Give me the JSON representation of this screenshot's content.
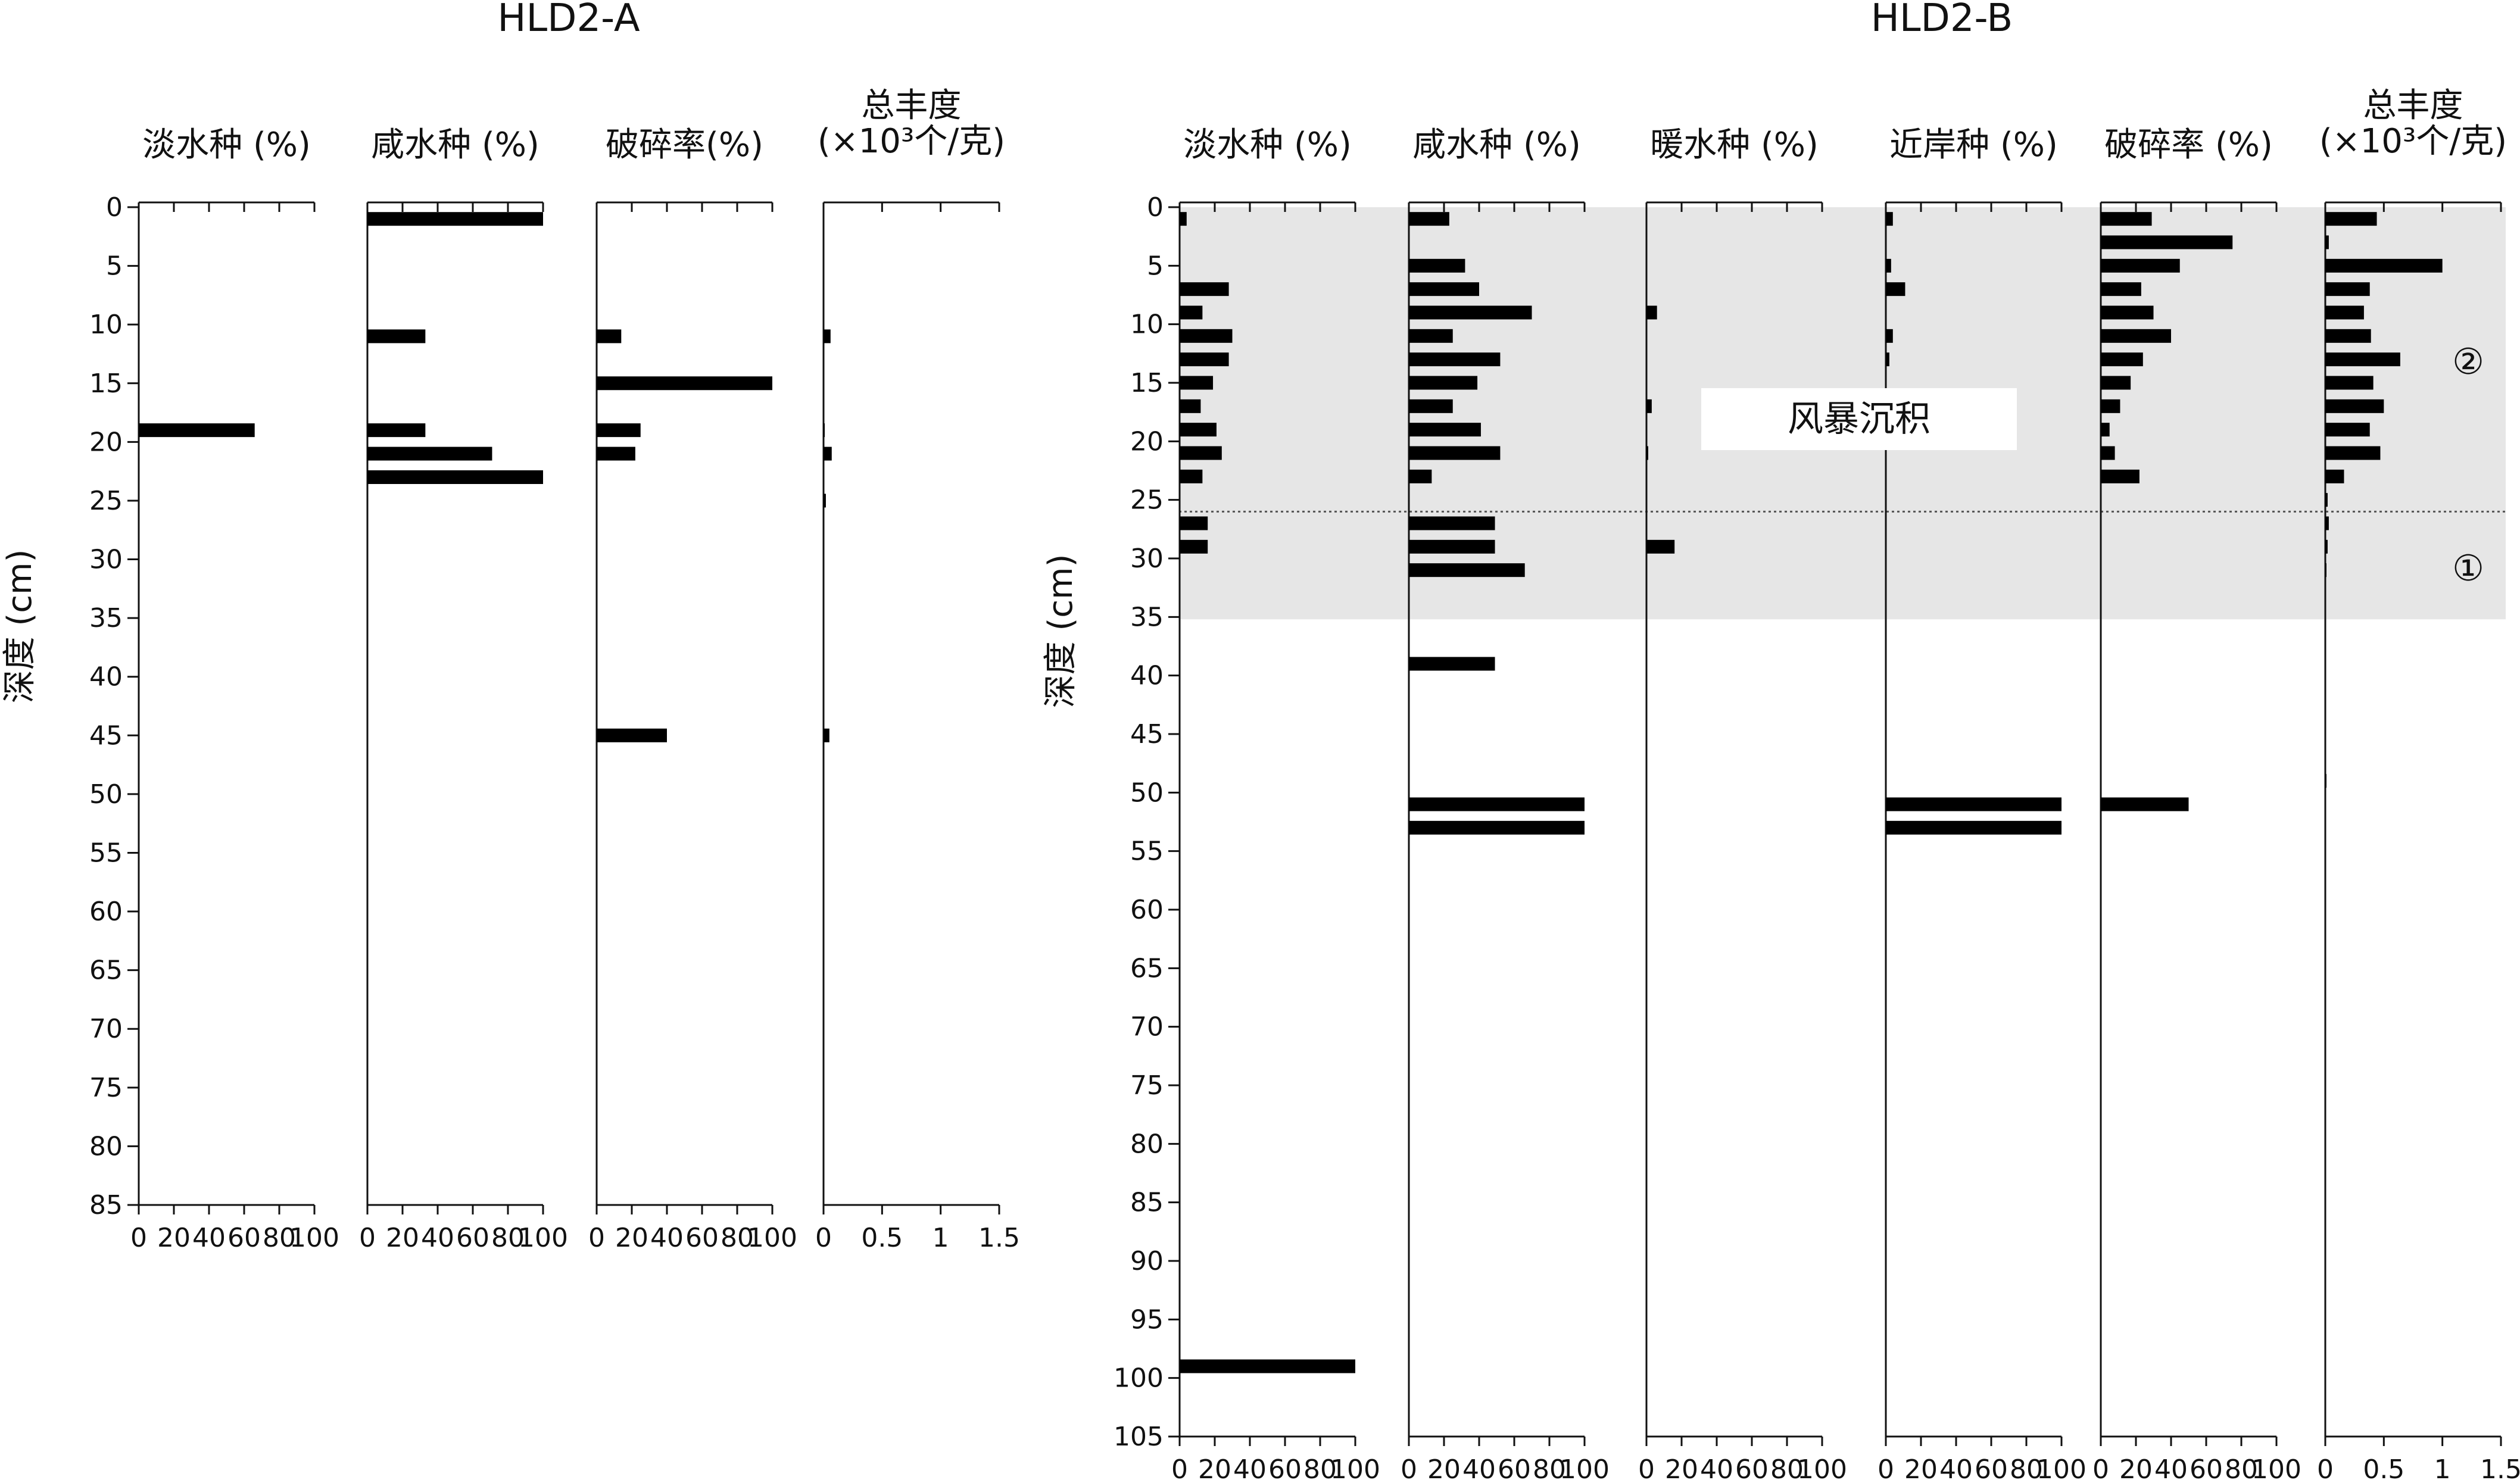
{
  "chart_data": [
    {
      "type": "bar",
      "orientation": "horizontal",
      "title": "HLD2-A",
      "ylabel": "深度 (cm)",
      "depth_ticks": [
        0,
        5,
        10,
        15,
        20,
        25,
        30,
        35,
        40,
        45,
        50,
        55,
        60,
        65,
        70,
        75,
        80,
        85
      ],
      "ylim": [
        0,
        85
      ],
      "columns": [
        {
          "title": "淡水种 (%)",
          "xlim": [
            0,
            100
          ],
          "tick_labels": [
            "0",
            "20",
            "40",
            "60",
            "80",
            "100"
          ],
          "bars": [
            {
              "depth": 19,
              "value": 66
            }
          ]
        },
        {
          "title": "咸水种 (%)",
          "xlim": [
            0,
            100
          ],
          "tick_labels": [
            "0",
            "20",
            "40",
            "60",
            "80",
            "100"
          ],
          "bars": [
            {
              "depth": 1,
              "value": 100
            },
            {
              "depth": 11,
              "value": 33
            },
            {
              "depth": 19,
              "value": 33
            },
            {
              "depth": 21,
              "value": 71
            },
            {
              "depth": 23,
              "value": 100
            }
          ]
        },
        {
          "title": "破碎率(%)",
          "xlim": [
            0,
            100
          ],
          "tick_labels": [
            "0",
            "20",
            "40",
            "60",
            "80",
            "100"
          ],
          "bars": [
            {
              "depth": 11,
              "value": 14
            },
            {
              "depth": 15,
              "value": 100
            },
            {
              "depth": 19,
              "value": 25
            },
            {
              "depth": 21,
              "value": 22
            },
            {
              "depth": 45,
              "value": 40
            }
          ]
        },
        {
          "title": "总丰度",
          "subtitle": "(×10³个/克)",
          "xlim": [
            0,
            1.5
          ],
          "tick_labels": [
            "0",
            "0.5",
            "1",
            "1.5"
          ],
          "bars": [
            {
              "depth": 11,
              "value": 0.06
            },
            {
              "depth": 19,
              "value": 0.01
            },
            {
              "depth": 21,
              "value": 0.07
            },
            {
              "depth": 25,
              "value": 0.02
            },
            {
              "depth": 45,
              "value": 0.05
            }
          ]
        }
      ]
    },
    {
      "type": "bar",
      "orientation": "horizontal",
      "title": "HLD2-B",
      "ylabel": "深度 (cm)",
      "depth_ticks": [
        0,
        5,
        10,
        15,
        20,
        25,
        30,
        35,
        40,
        45,
        50,
        55,
        60,
        65,
        70,
        75,
        80,
        85,
        90,
        95,
        100,
        105
      ],
      "ylim": [
        0,
        105
      ],
      "shaded_interval": [
        0,
        35.2
      ],
      "divider_depth": 26,
      "annotations": [
        {
          "text": "风暴沉积"
        },
        {
          "text": "②"
        },
        {
          "text": "①"
        }
      ],
      "columns": [
        {
          "title": "淡水种 (%)",
          "xlim": [
            0,
            100
          ],
          "tick_labels": [
            "0",
            "20",
            "40",
            "60",
            "80",
            "100"
          ],
          "bars": [
            {
              "depth": 1,
              "value": 4
            },
            {
              "depth": 7,
              "value": 28
            },
            {
              "depth": 9,
              "value": 13
            },
            {
              "depth": 11,
              "value": 30
            },
            {
              "depth": 13,
              "value": 28
            },
            {
              "depth": 15,
              "value": 19
            },
            {
              "depth": 17,
              "value": 12
            },
            {
              "depth": 19,
              "value": 21
            },
            {
              "depth": 21,
              "value": 24
            },
            {
              "depth": 23,
              "value": 13
            },
            {
              "depth": 27,
              "value": 16
            },
            {
              "depth": 29,
              "value": 16
            },
            {
              "depth": 99,
              "value": 100
            }
          ]
        },
        {
          "title": "咸水种 (%)",
          "xlim": [
            0,
            100
          ],
          "tick_labels": [
            "0",
            "20",
            "40",
            "60",
            "80",
            "100"
          ],
          "bars": [
            {
              "depth": 1,
              "value": 23
            },
            {
              "depth": 5,
              "value": 32
            },
            {
              "depth": 7,
              "value": 40
            },
            {
              "depth": 9,
              "value": 70
            },
            {
              "depth": 11,
              "value": 25
            },
            {
              "depth": 13,
              "value": 52
            },
            {
              "depth": 15,
              "value": 39
            },
            {
              "depth": 17,
              "value": 25
            },
            {
              "depth": 19,
              "value": 41
            },
            {
              "depth": 21,
              "value": 52
            },
            {
              "depth": 23,
              "value": 13
            },
            {
              "depth": 27,
              "value": 49
            },
            {
              "depth": 29,
              "value": 49
            },
            {
              "depth": 31,
              "value": 66
            },
            {
              "depth": 39,
              "value": 49
            },
            {
              "depth": 51,
              "value": 100
            },
            {
              "depth": 53,
              "value": 100
            }
          ]
        },
        {
          "title": "暖水种 (%)",
          "xlim": [
            0,
            100
          ],
          "tick_labels": [
            "0",
            "20",
            "40",
            "60",
            "80",
            "100"
          ],
          "bars": [
            {
              "depth": 9,
              "value": 6
            },
            {
              "depth": 17,
              "value": 3
            },
            {
              "depth": 21,
              "value": 1
            },
            {
              "depth": 29,
              "value": 16
            }
          ]
        },
        {
          "title": "近岸种 (%)",
          "xlim": [
            0,
            100
          ],
          "tick_labels": [
            "0",
            "20",
            "40",
            "60",
            "80",
            "100"
          ],
          "bars": [
            {
              "depth": 1,
              "value": 4
            },
            {
              "depth": 5,
              "value": 3
            },
            {
              "depth": 7,
              "value": 11
            },
            {
              "depth": 11,
              "value": 4
            },
            {
              "depth": 13,
              "value": 2
            },
            {
              "depth": 51,
              "value": 100
            },
            {
              "depth": 53,
              "value": 100
            }
          ]
        },
        {
          "title": "破碎率 (%)",
          "xlim": [
            0,
            100
          ],
          "tick_labels": [
            "0",
            "20",
            "40",
            "60",
            "80",
            "100"
          ],
          "bars": [
            {
              "depth": 1,
              "value": 29
            },
            {
              "depth": 3,
              "value": 75
            },
            {
              "depth": 5,
              "value": 45
            },
            {
              "depth": 7,
              "value": 23
            },
            {
              "depth": 9,
              "value": 30
            },
            {
              "depth": 11,
              "value": 40
            },
            {
              "depth": 13,
              "value": 24
            },
            {
              "depth": 15,
              "value": 17
            },
            {
              "depth": 17,
              "value": 11
            },
            {
              "depth": 19,
              "value": 5
            },
            {
              "depth": 21,
              "value": 8
            },
            {
              "depth": 23,
              "value": 22
            },
            {
              "depth": 51,
              "value": 50
            }
          ]
        },
        {
          "title": "总丰度",
          "subtitle": "(×10³个/克)",
          "xlim": [
            0,
            1.5
          ],
          "tick_labels": [
            "0",
            "0.5",
            "1",
            "1.5"
          ],
          "bars": [
            {
              "depth": 1,
              "value": 0.44
            },
            {
              "depth": 3,
              "value": 0.03
            },
            {
              "depth": 5,
              "value": 1.0
            },
            {
              "depth": 7,
              "value": 0.38
            },
            {
              "depth": 9,
              "value": 0.33
            },
            {
              "depth": 11,
              "value": 0.39
            },
            {
              "depth": 13,
              "value": 0.64
            },
            {
              "depth": 15,
              "value": 0.41
            },
            {
              "depth": 17,
              "value": 0.5
            },
            {
              "depth": 19,
              "value": 0.38
            },
            {
              "depth": 21,
              "value": 0.47
            },
            {
              "depth": 23,
              "value": 0.16
            },
            {
              "depth": 25,
              "value": 0.02
            },
            {
              "depth": 27,
              "value": 0.03
            },
            {
              "depth": 29,
              "value": 0.02
            },
            {
              "depth": 31,
              "value": 0.01
            },
            {
              "depth": 49,
              "value": 0.01
            }
          ]
        }
      ]
    }
  ]
}
